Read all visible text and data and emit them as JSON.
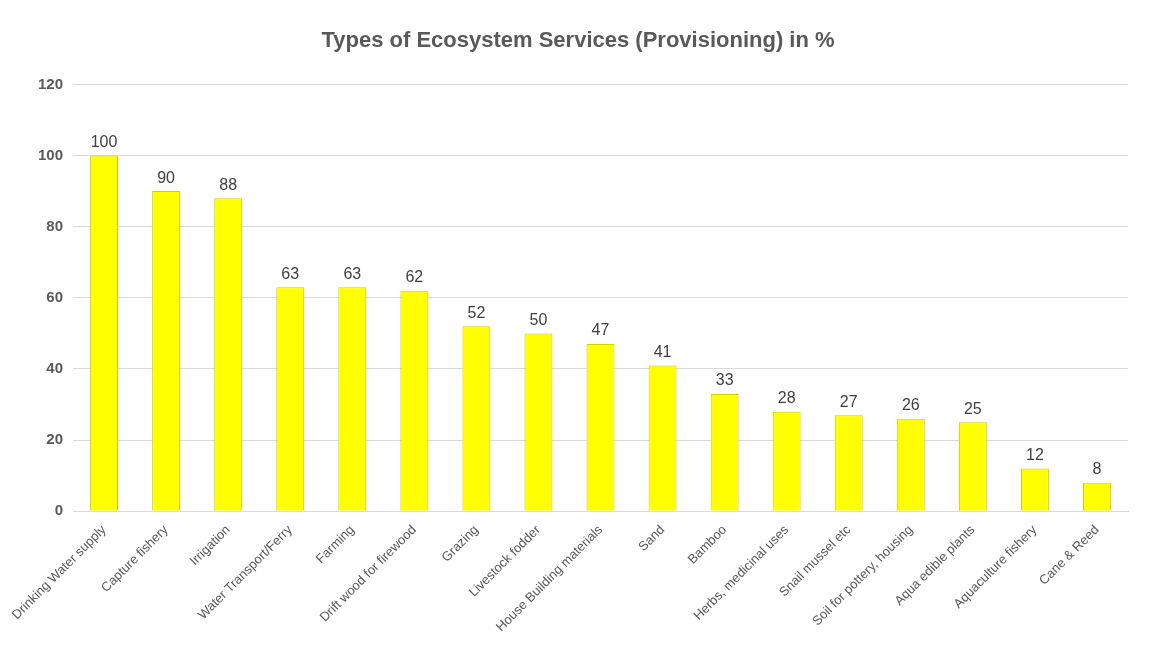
{
  "chart_data": {
    "type": "bar",
    "title": "Types of Ecosystem Services (Provisioning) in %",
    "categories": [
      "Drinking Water supply",
      "Capture fishery",
      "Irrigation",
      "Water Transport/Ferry",
      "Farming",
      "Drift wood for firewood",
      "Grazing",
      "Livestock fodder",
      "House Building materials",
      "Sand",
      "Bamboo",
      "Herbs, medicinal uses",
      "Snail mussel etc",
      "Soil for pottery, housing",
      "Aqua edible plants",
      "Aquaculture fishery",
      "Cane & Reed"
    ],
    "values": [
      100,
      90,
      88,
      63,
      63,
      62,
      52,
      50,
      47,
      41,
      33,
      28,
      27,
      26,
      25,
      12,
      8
    ],
    "color": "#ffff00",
    "ylim": [
      0,
      120
    ],
    "yticks": [
      0,
      20,
      40,
      60,
      80,
      100,
      120
    ],
    "grid": "y",
    "data_labels": true
  }
}
